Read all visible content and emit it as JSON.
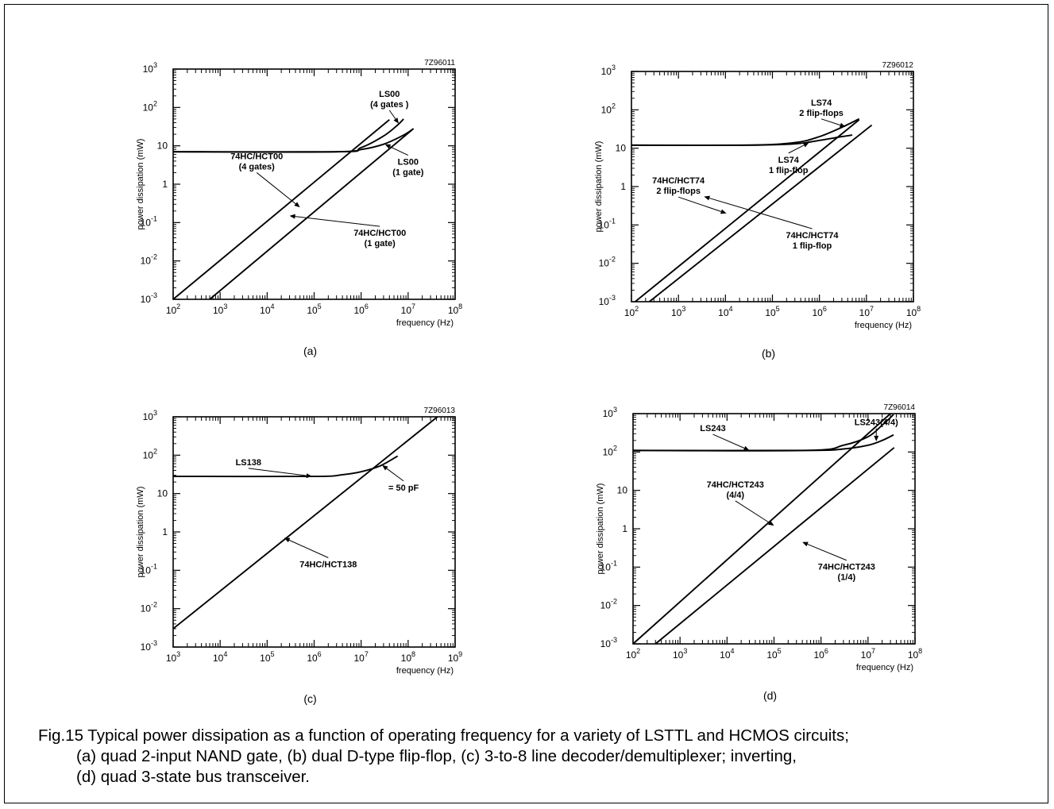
{
  "chart_data": [
    {
      "type": "line",
      "id": "a",
      "panel_label": "(a)",
      "code": "7Z96011",
      "xlabel": "frequency (Hz)",
      "ylabel": "power dissipation (mW)",
      "x_log": true,
      "y_log": true,
      "xlim": [
        100,
        100000000
      ],
      "ylim": [
        0.001,
        1000
      ],
      "x_ticks": [
        2,
        3,
        4,
        5,
        6,
        7,
        8
      ],
      "y_ticks": [
        -3,
        -2,
        -1,
        0,
        1,
        2,
        3
      ],
      "series": [
        {
          "label": "74HC/HCT00 (4 gates)",
          "x": [
            100,
            4000000
          ],
          "y": [
            0.001,
            48
          ]
        },
        {
          "label": "74HC/HCT00 (1 gate)",
          "x": [
            600,
            13000000
          ],
          "y": [
            0.001,
            28
          ]
        },
        {
          "label": "LS00 (4 gates)",
          "x": [
            100,
            300000,
            1000000,
            3000000,
            6000000,
            8000000
          ],
          "y": [
            7,
            7,
            9,
            18,
            35,
            50
          ]
        },
        {
          "label": "LS00 (1 gate)",
          "x": [
            100,
            300000,
            1000000,
            3000000,
            8000000,
            13000000
          ],
          "y": [
            7,
            7,
            8,
            11,
            19,
            28
          ]
        }
      ],
      "annotations": [
        {
          "lines": [
            "LS00",
            "(4 gates )"
          ],
          "x": 4000000,
          "y": 190,
          "arrow_to": [
            6300000,
            38
          ]
        },
        {
          "lines": [
            "LS00",
            "(1 gate)"
          ],
          "x": 10000000,
          "y": 3.2,
          "arrow_to": [
            3200000,
            11
          ]
        },
        {
          "lines": [
            "74HC/HCT00",
            "(4 gates)"
          ],
          "x": 6000,
          "y": 4.5,
          "arrow_to": [
            50000,
            0.25
          ]
        },
        {
          "lines": [
            "74HC/HCT00",
            "(1 gate)"
          ],
          "x": 2500000,
          "y": 0.045,
          "arrow_to": [
            30000,
            0.15
          ]
        }
      ]
    },
    {
      "type": "line",
      "id": "b",
      "panel_label": "(b)",
      "code": "7Z96012",
      "xlabel": "frequency (Hz)",
      "ylabel": "power dissipation (mW)",
      "x_log": true,
      "y_log": true,
      "xlim": [
        100,
        100000000
      ],
      "ylim": [
        0.001,
        1000
      ],
      "x_ticks": [
        2,
        3,
        4,
        5,
        6,
        7,
        8
      ],
      "y_ticks": [
        -3,
        -2,
        -1,
        0,
        1,
        2,
        3
      ],
      "series": [
        {
          "label": "74HC/HCT74 2 flip-flops",
          "x": [
            120,
            7000000
          ],
          "y": [
            0.001,
            55
          ]
        },
        {
          "label": "74HC/HCT74 1 flip-flop",
          "x": [
            240,
            13000000
          ],
          "y": [
            0.001,
            40
          ]
        },
        {
          "label": "LS74 2 flip-flops",
          "x": [
            100,
            30000,
            300000,
            1000000,
            3000000,
            7000000
          ],
          "y": [
            12,
            12,
            14,
            20,
            35,
            58
          ]
        },
        {
          "label": "LS74 1 flip-flop",
          "x": [
            100,
            30000,
            300000,
            1000000,
            3000000,
            5000000
          ],
          "y": [
            12,
            12,
            13,
            16,
            20,
            22
          ]
        }
      ],
      "annotations": [
        {
          "lines": [
            "LS74",
            "2 flip-flops"
          ],
          "x": 1100000,
          "y": 130,
          "arrow_to": [
            3600000,
            36
          ]
        },
        {
          "lines": [
            "LS74",
            "1 flip-flop"
          ],
          "x": 220000,
          "y": 4.2,
          "arrow_to": [
            600000,
            14
          ]
        },
        {
          "lines": [
            "74HC/HCT74",
            "2 flip-flops"
          ],
          "x": 1000,
          "y": 1.2,
          "arrow_to": [
            10500,
            0.2
          ]
        },
        {
          "lines": [
            "74HC/HCT74",
            "1 flip-flop"
          ],
          "x": 700000,
          "y": 0.045,
          "arrow_to": [
            3500,
            0.55
          ]
        }
      ]
    },
    {
      "type": "line",
      "id": "c",
      "panel_label": "(c)",
      "code": "7Z96013",
      "xlabel": "frequency (Hz)",
      "ylabel": "power dissipation (mW)",
      "x_log": true,
      "y_log": true,
      "xlim": [
        1000,
        1000000000
      ],
      "ylim": [
        0.001,
        1000
      ],
      "x_ticks": [
        3,
        4,
        5,
        6,
        7,
        8,
        9
      ],
      "y_ticks": [
        -3,
        -2,
        -1,
        0,
        1,
        2,
        3
      ],
      "series": [
        {
          "label": "74HC/HCT138",
          "x": [
            1000,
            420000000
          ],
          "y": [
            0.003,
            1000
          ]
        },
        {
          "label": "LS138",
          "x": [
            1000,
            1000000,
            4000000,
            10000000,
            25000000,
            60000000
          ],
          "y": [
            28,
            28,
            31,
            37,
            52,
            95
          ]
        }
      ],
      "annotations": [
        {
          "lines": [
            "LS138"
          ],
          "x": 40000,
          "y": 55,
          "arrow_to": [
            900000,
            28
          ]
        },
        {
          "lines": [
            "= 50 pF"
          ],
          "x": 80000000,
          "y": 12,
          "arrow_to": [
            28000000,
            55
          ]
        },
        {
          "lines": [
            "74HC/HCT138"
          ],
          "x": 2000000,
          "y": 0.12,
          "arrow_to": [
            230000,
            0.7
          ]
        }
      ]
    },
    {
      "type": "line",
      "id": "d",
      "panel_label": "(d)",
      "code": "7Z96014",
      "xlabel": "frequency (Hz)",
      "ylabel": "power dissipation (mW)",
      "x_log": true,
      "y_log": true,
      "xlim": [
        100,
        100000000
      ],
      "ylim": [
        0.001,
        1000
      ],
      "x_ticks": [
        2,
        3,
        4,
        5,
        6,
        7,
        8
      ],
      "y_ticks": [
        -3,
        -2,
        -1,
        0,
        1,
        2,
        3
      ],
      "series": [
        {
          "label": "74HC/HCT243 (4/4)",
          "x": [
            100,
            30000000
          ],
          "y": [
            0.001,
            1000
          ]
        },
        {
          "label": "74HC/HCT243 (1/4)",
          "x": [
            300,
            36000000
          ],
          "y": [
            0.001,
            130
          ]
        },
        {
          "label": "LS243(4/4)",
          "x": [
            100,
            500000,
            3000000,
            10000000,
            20000000,
            35000000
          ],
          "y": [
            110,
            110,
            150,
            250,
            500,
            950
          ]
        },
        {
          "label": "LS243",
          "x": [
            100,
            500000,
            3000000,
            10000000,
            20000000,
            35000000
          ],
          "y": [
            110,
            110,
            120,
            150,
            200,
            280
          ]
        }
      ],
      "annotations": [
        {
          "lines": [
            "LS243(4/4)"
          ],
          "x": 15000000,
          "y": 500,
          "arrow_to": [
            15000000,
            190
          ]
        },
        {
          "lines": [
            "LS243"
          ],
          "x": 5000,
          "y": 350,
          "arrow_to": [
            30000,
            110
          ]
        },
        {
          "lines": [
            "74HC/HCT243",
            "(4/4)"
          ],
          "x": 15000,
          "y": 12,
          "arrow_to": [
            100000,
            1.2
          ]
        },
        {
          "lines": [
            "74HC/HCT243",
            "(1/4)"
          ],
          "x": 3500000,
          "y": 0.085,
          "arrow_to": [
            400000,
            0.45
          ]
        }
      ]
    }
  ],
  "caption": {
    "line1": "Fig.15  Typical power dissipation as a function of operating frequency for a variety of LSTTL and HCMOS circuits;",
    "line2": "(a) quad 2-input NAND gate, (b) dual D-type flip-flop, (c) 3-to-8 line decoder/demultiplexer; inverting,",
    "line3": "(d) quad 3-state bus transceiver."
  }
}
